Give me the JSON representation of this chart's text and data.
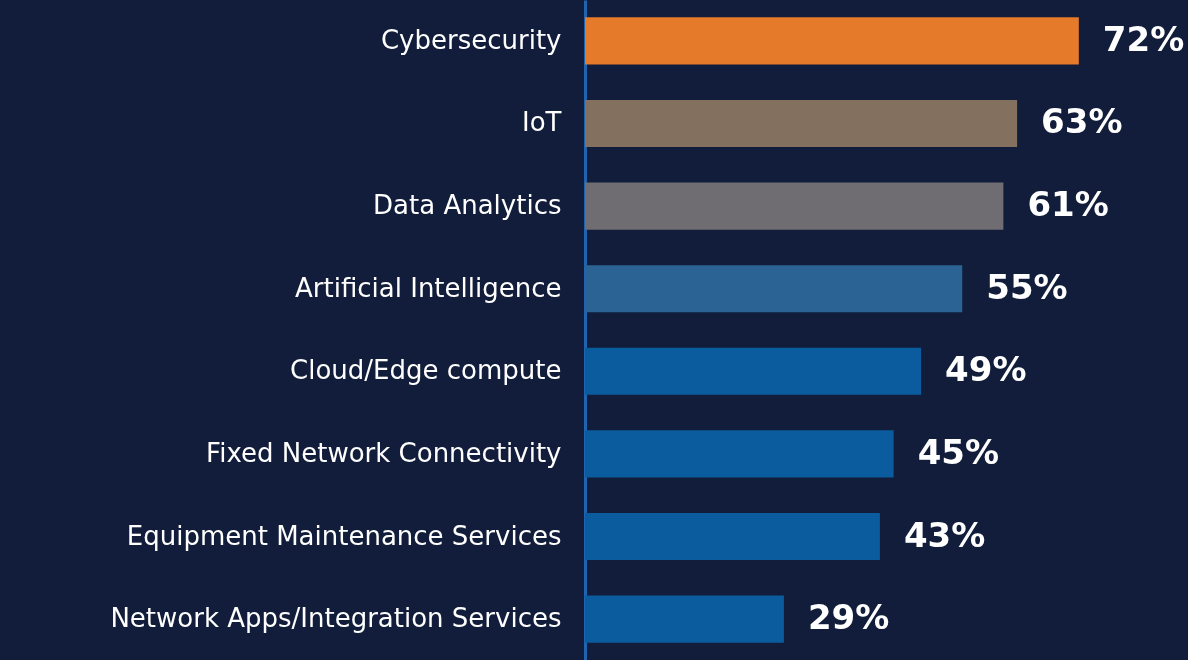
{
  "chart_data": {
    "type": "bar",
    "orientation": "horizontal",
    "categories": [
      "Cybersecurity",
      "IoT",
      "Data Analytics",
      "Artificial Intelligence",
      "Cloud/Edge compute",
      "Fixed Network Connectivity",
      "Equipment Maintenance Services",
      "Network Apps/Integration Services"
    ],
    "values": [
      72,
      63,
      61,
      55,
      49,
      45,
      43,
      29
    ],
    "value_labels": [
      "72%",
      "63%",
      "61%",
      "55%",
      "49%",
      "45%",
      "43%",
      "29%"
    ],
    "colors": [
      "#e47a2a",
      "#83705f",
      "#6f6d72",
      "#2b6494",
      "#0a5c9e",
      "#0a5c9e",
      "#0a5c9e",
      "#0a5c9e"
    ]
  }
}
